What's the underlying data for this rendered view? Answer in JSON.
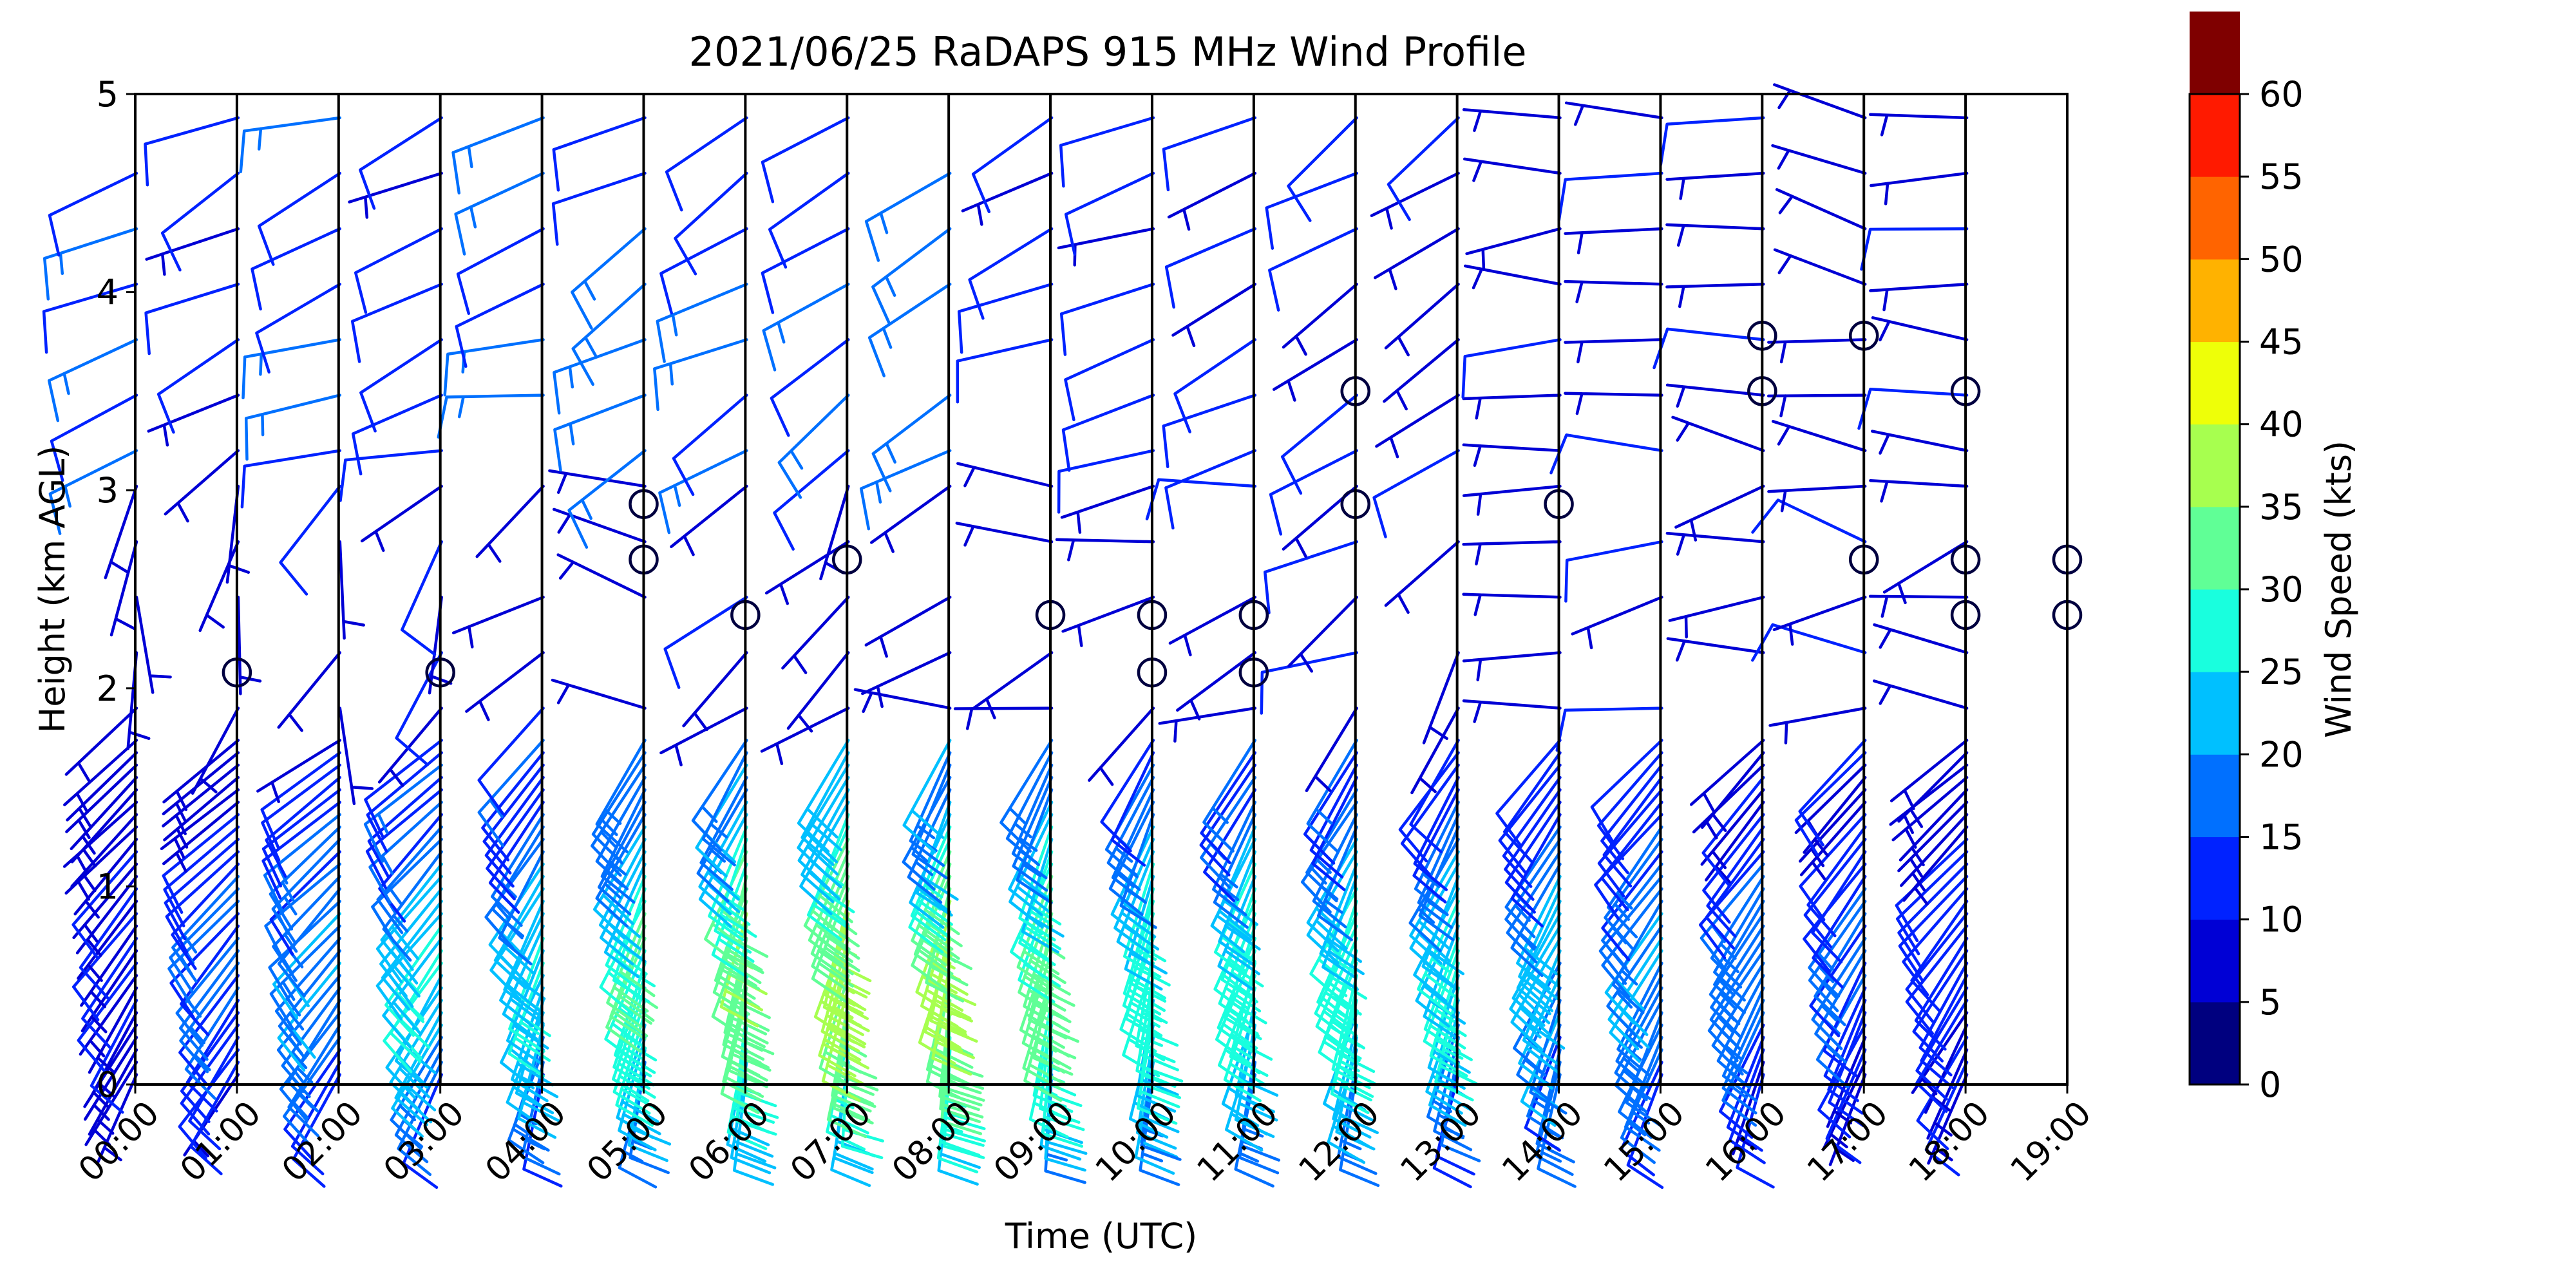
{
  "chart_data": {
    "type": "wind-barb",
    "title": "2021/06/25 RaDAPS 915 MHz Wind Profile",
    "xlabel": "Time (UTC)",
    "ylabel": "Height (km AGL)",
    "x_ticks": [
      "00:00",
      "01:00",
      "02:00",
      "03:00",
      "04:00",
      "05:00",
      "06:00",
      "07:00",
      "08:00",
      "09:00",
      "10:00",
      "11:00",
      "12:00",
      "13:00",
      "14:00",
      "15:00",
      "16:00",
      "17:00",
      "18:00",
      "19:00"
    ],
    "xlim": [
      0,
      19
    ],
    "ylim": [
      0,
      5
    ],
    "y_ticks": [
      0,
      1,
      2,
      3,
      4,
      5
    ],
    "vertical_lines_at_hours": true,
    "colorbar": {
      "label": "Wind Speed (kts)",
      "ticks": [
        0,
        5,
        10,
        15,
        20,
        25,
        30,
        35,
        40,
        45,
        50,
        55,
        60
      ],
      "colors": [
        "#00007f",
        "#0000d5",
        "#0022ff",
        "#0070ff",
        "#00c0ff",
        "#19ffde",
        "#60ff96",
        "#a7ff4f",
        "#eeff08",
        "#ffb200",
        "#ff6400",
        "#ff1a00",
        "#7f0000"
      ]
    },
    "calm_circles": [
      {
        "hour": 1,
        "km": 2.08
      },
      {
        "hour": 3,
        "km": 2.08
      },
      {
        "hour": 5,
        "km": 2.93
      },
      {
        "hour": 5,
        "km": 2.65
      },
      {
        "hour": 6,
        "km": 2.37
      },
      {
        "hour": 7,
        "km": 2.65
      },
      {
        "hour": 9,
        "km": 2.37
      },
      {
        "hour": 10,
        "km": 2.37
      },
      {
        "hour": 10,
        "km": 2.08
      },
      {
        "hour": 11,
        "km": 2.37
      },
      {
        "hour": 11,
        "km": 2.08
      },
      {
        "hour": 12,
        "km": 3.5
      },
      {
        "hour": 12,
        "km": 2.93
      },
      {
        "hour": 14,
        "km": 2.93
      },
      {
        "hour": 16,
        "km": 3.78
      },
      {
        "hour": 16,
        "km": 3.5
      },
      {
        "hour": 17,
        "km": 3.78
      },
      {
        "hour": 17,
        "km": 2.65
      },
      {
        "hour": 18,
        "km": 3.5
      },
      {
        "hour": 18,
        "km": 2.65
      },
      {
        "hour": 18,
        "km": 2.37
      },
      {
        "hour": 19,
        "km": 2.65
      },
      {
        "hour": 19,
        "km": 2.37
      }
    ],
    "wind_profiles": [
      {
        "hour": 0,
        "low": {
          "spd": 10,
          "dir": 230
        },
        "mid": {
          "spd": 8,
          "dir": 200
        },
        "high": {
          "spd": 15,
          "dir": 240
        }
      },
      {
        "hour": 1,
        "low": {
          "spd": 15,
          "dir": 235
        },
        "mid": {
          "spd": 8,
          "dir": 180
        },
        "high": {
          "spd": 12,
          "dir": 240
        }
      },
      {
        "hour": 2,
        "low": {
          "spd": 20,
          "dir": 235
        },
        "mid": {
          "spd": 8,
          "dir": 200
        },
        "high": {
          "spd": 15,
          "dir": 250
        }
      },
      {
        "hour": 3,
        "low": {
          "spd": 25,
          "dir": 230
        },
        "mid": {
          "spd": 8,
          "dir": 210
        },
        "high": {
          "spd": 12,
          "dir": 250
        }
      },
      {
        "hour": 4,
        "low": {
          "spd": 25,
          "dir": 220
        },
        "mid": {
          "spd": 10,
          "dir": 230
        },
        "high": {
          "spd": 15,
          "dir": 255
        }
      },
      {
        "hour": 5,
        "low": {
          "spd": 30,
          "dir": 215
        },
        "mid": {
          "spd": 8,
          "dir": 290
        },
        "high": {
          "spd": 15,
          "dir": 240
        }
      },
      {
        "hour": 6,
        "low": {
          "spd": 35,
          "dir": 210
        },
        "mid": {
          "spd": 8,
          "dir": 230
        },
        "high": {
          "spd": 15,
          "dir": 240
        }
      },
      {
        "hour": 7,
        "low": {
          "spd": 38,
          "dir": 210
        },
        "mid": {
          "spd": 8,
          "dir": 220
        },
        "high": {
          "spd": 15,
          "dir": 240
        }
      },
      {
        "hour": 8,
        "low": {
          "spd": 37,
          "dir": 210
        },
        "mid": {
          "spd": 8,
          "dir": 260
        },
        "high": {
          "spd": 18,
          "dir": 235
        }
      },
      {
        "hour": 9,
        "low": {
          "spd": 33,
          "dir": 210
        },
        "mid": {
          "spd": 8,
          "dir": 260
        },
        "high": {
          "spd": 10,
          "dir": 245
        }
      },
      {
        "hour": 10,
        "low": {
          "spd": 28,
          "dir": 210
        },
        "mid": {
          "spd": 8,
          "dir": 250
        },
        "high": {
          "spd": 10,
          "dir": 250
        }
      },
      {
        "hour": 11,
        "low": {
          "spd": 28,
          "dir": 215
        },
        "mid": {
          "spd": 8,
          "dir": 250
        },
        "high": {
          "spd": 12,
          "dir": 240
        }
      },
      {
        "hour": 12,
        "low": {
          "spd": 28,
          "dir": 215
        },
        "mid": {
          "spd": 8,
          "dir": 240
        },
        "high": {
          "spd": 10,
          "dir": 240
        }
      },
      {
        "hour": 13,
        "low": {
          "spd": 25,
          "dir": 215
        },
        "mid": {
          "spd": 8,
          "dir": 230
        },
        "high": {
          "spd": 10,
          "dir": 240
        }
      },
      {
        "hour": 14,
        "low": {
          "spd": 22,
          "dir": 220
        },
        "mid": {
          "spd": 10,
          "dir": 245
        },
        "high": {
          "spd": 8,
          "dir": 270
        }
      },
      {
        "hour": 15,
        "low": {
          "spd": 20,
          "dir": 225
        },
        "mid": {
          "spd": 10,
          "dir": 250
        },
        "high": {
          "spd": 8,
          "dir": 270
        }
      },
      {
        "hour": 16,
        "low": {
          "spd": 18,
          "dir": 225
        },
        "mid": {
          "spd": 8,
          "dir": 260
        },
        "high": {
          "spd": 8,
          "dir": 280
        }
      },
      {
        "hour": 17,
        "low": {
          "spd": 15,
          "dir": 225
        },
        "mid": {
          "spd": 8,
          "dir": 270
        },
        "high": {
          "spd": 8,
          "dir": 280
        }
      },
      {
        "hour": 18,
        "low": {
          "spd": 13,
          "dir": 230
        },
        "mid": {
          "spd": 8,
          "dir": 260
        },
        "high": {
          "spd": 8,
          "dir": 270
        }
      }
    ]
  }
}
